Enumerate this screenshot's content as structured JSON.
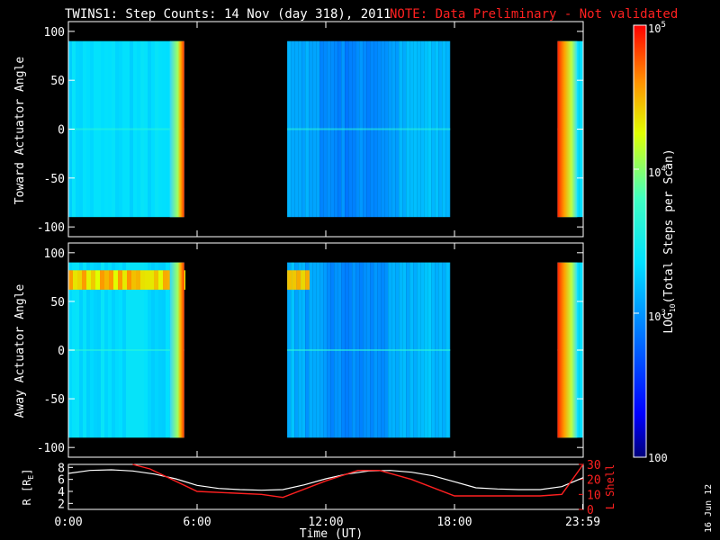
{
  "header": {
    "title": "TWINS1: Step Counts: 14 Nov (day 318), 2011",
    "note": "NOTE: Data Preliminary - Not validated",
    "note_color": "#ff2020",
    "date_stamp": "16 Jun 12"
  },
  "chart_data": [
    {
      "type": "heatmap",
      "title": "",
      "ylabel": "Toward Actuator Angle",
      "ylim": [
        -110,
        110
      ],
      "yticks": [
        "100",
        "50",
        "0",
        "-50",
        "-100"
      ],
      "ytick_values": [
        100,
        50,
        0,
        -50,
        -100
      ],
      "data_y_range": [
        -90,
        90
      ],
      "xlim_hours": [
        0,
        24
      ],
      "data_segments_hours": [
        [
          0,
          5.4
        ],
        [
          10.2,
          17.8
        ],
        [
          22.8,
          24
        ]
      ],
      "colormap": "rainbow-log"
    },
    {
      "type": "heatmap",
      "title": "",
      "ylabel": "Away Actuator Angle",
      "ylim": [
        -110,
        110
      ],
      "yticks": [
        "100",
        "50",
        "0",
        "-50",
        "-100"
      ],
      "ytick_values": [
        100,
        50,
        0,
        -50,
        -100
      ],
      "data_y_range": [
        -90,
        90
      ],
      "xlim_hours": [
        0,
        24
      ],
      "data_segments_hours": [
        [
          0,
          5.4
        ],
        [
          10.2,
          17.8
        ],
        [
          22.8,
          24
        ]
      ],
      "colormap": "rainbow-log"
    },
    {
      "type": "line",
      "ylabel_left": "R [R",
      "ylabel_left_sub": "E",
      "ylabel_left_end": "]",
      "ylabel_right": "L Shell",
      "ylim_left": [
        1,
        8.5
      ],
      "yticks_left": [
        "8",
        "6",
        "4",
        "2"
      ],
      "ytick_values_left": [
        8,
        6,
        4,
        2
      ],
      "ylim_right": [
        0,
        30
      ],
      "yticks_right": [
        "30",
        "20",
        "10",
        "0"
      ],
      "ytick_values_right": [
        30,
        20,
        10,
        0
      ],
      "xlabel": "Time (UT)",
      "xticks": [
        "0:00",
        "6:00",
        "12:00",
        "18:00",
        "23:59"
      ],
      "xtick_values": [
        0,
        6,
        12,
        18,
        23.98
      ],
      "series": [
        {
          "name": "R",
          "color": "#ffffff",
          "x": [
            0,
            1,
            2,
            3,
            4,
            5,
            6,
            7,
            8,
            9,
            10,
            11,
            12,
            13,
            14,
            15,
            16,
            17,
            18,
            19,
            20,
            21,
            22,
            23,
            24
          ],
          "y": [
            7.0,
            7.5,
            7.6,
            7.4,
            6.9,
            6.1,
            5.0,
            4.5,
            4.3,
            4.2,
            4.3,
            5.1,
            6.1,
            6.9,
            7.4,
            7.5,
            7.2,
            6.6,
            5.6,
            4.6,
            4.4,
            4.3,
            4.3,
            4.8,
            6.3
          ]
        },
        {
          "name": "L Shell",
          "color": "#ff2020",
          "x": [
            3.0,
            3.8,
            6.0,
            9.0,
            10.0,
            12.0,
            13.5,
            14.5,
            16.0,
            18.0,
            19.0,
            22.0,
            23.0,
            24.0
          ],
          "y": [
            31,
            27,
            12,
            10,
            8,
            19,
            26,
            26,
            20,
            9,
            9,
            9,
            10,
            30
          ]
        }
      ]
    }
  ],
  "colorbar": {
    "label_prefix": "LOG",
    "label_sub": "10",
    "label_suffix": "(Total Steps per Scan)",
    "ticks": [
      {
        "base": "10",
        "exp": "5",
        "value": 100000
      },
      {
        "base": "10",
        "exp": "4",
        "value": 10000
      },
      {
        "base": "10",
        "exp": "3",
        "value": 1000
      },
      {
        "base": "100",
        "exp": "",
        "value": 100
      }
    ],
    "range": [
      100,
      100000
    ]
  }
}
